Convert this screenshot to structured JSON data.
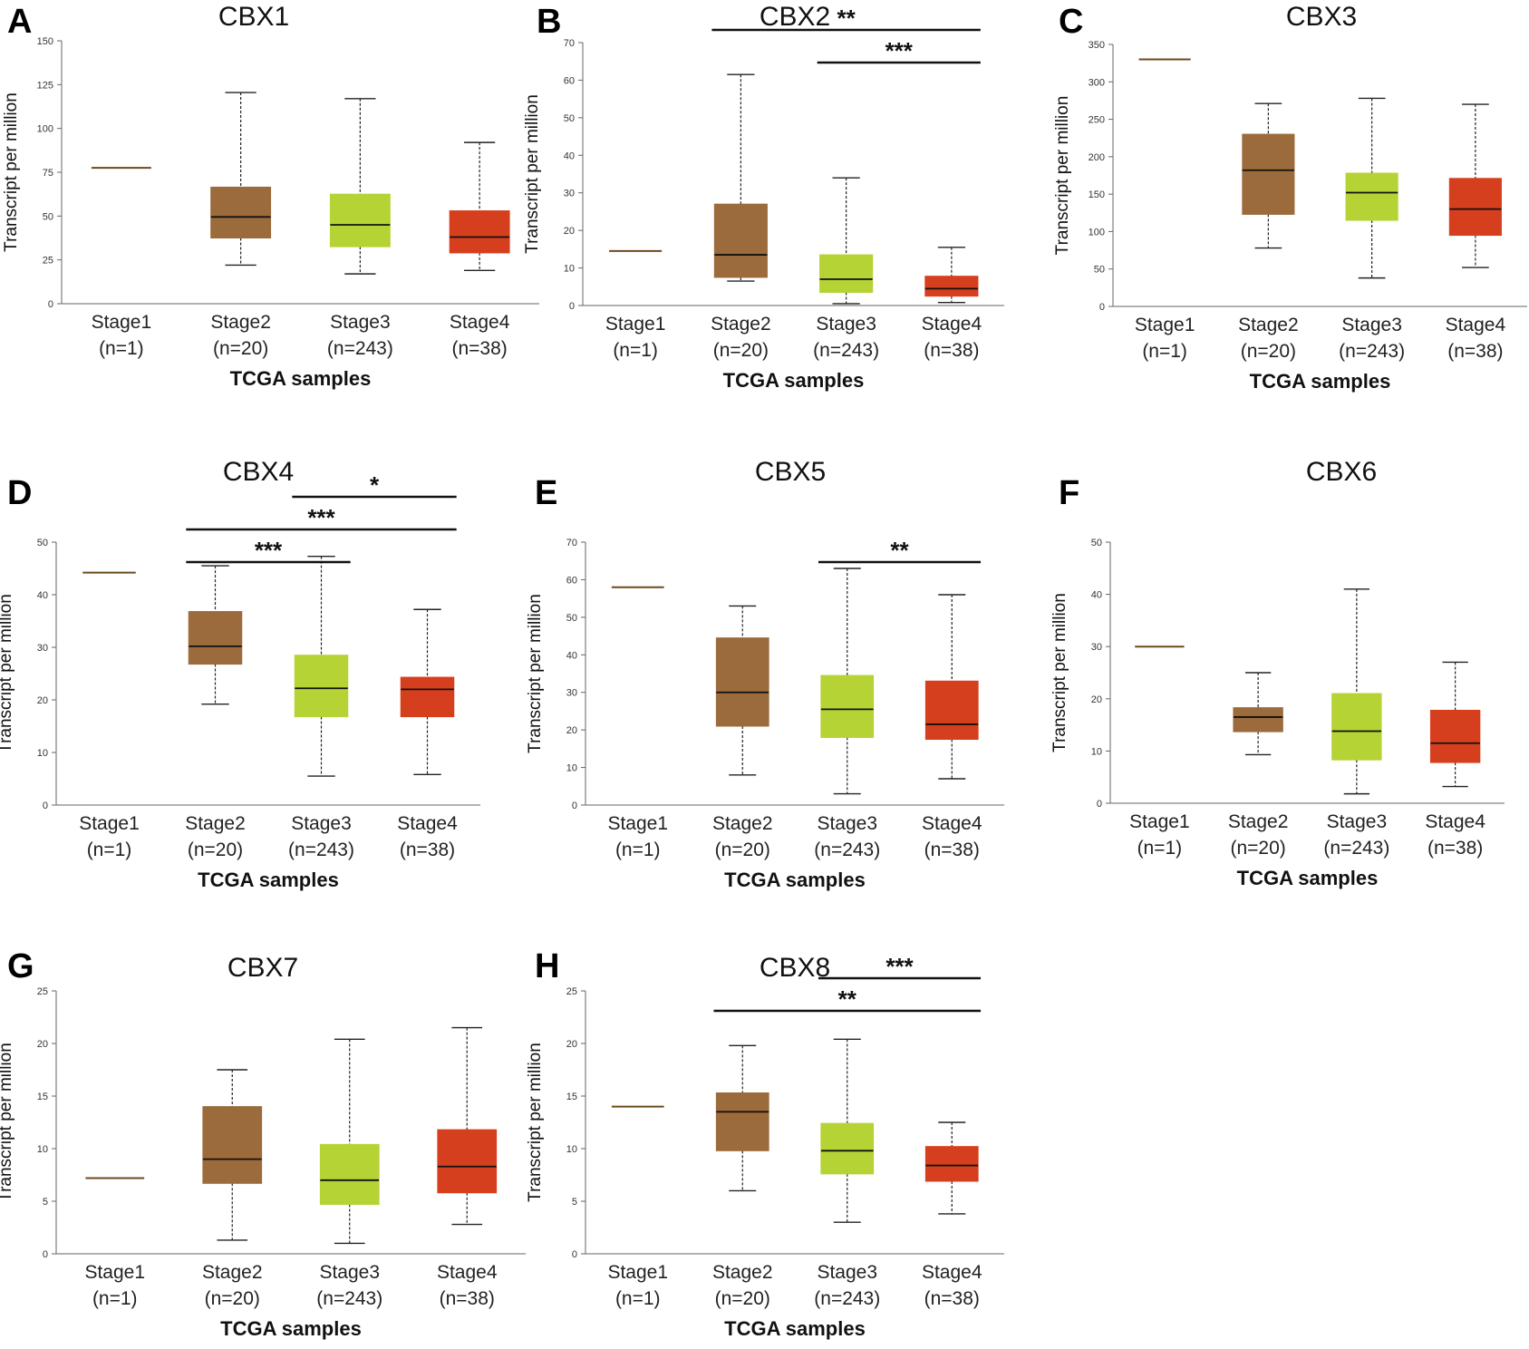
{
  "colors": {
    "Stage1": "#6b4a1e",
    "Stage2": "#9c6b3b",
    "Stage3": "#b5d334",
    "Stage4": "#d63f1d",
    "axis": "#666666",
    "median": "#111111"
  },
  "chart_data": [
    {
      "type": "boxplot",
      "panel": "A",
      "title": "CBX1",
      "xlabel": "TCGA samples",
      "ylabel": "Transcript per million",
      "ylim": [
        0,
        150
      ],
      "yticks": [
        0,
        25,
        50,
        75,
        100,
        125,
        150
      ],
      "categories": [
        {
          "label": "Stage1",
          "n": "(n=1)",
          "min": 77.5,
          "q1": 77.5,
          "median": 77.5,
          "q3": 77.5,
          "max": 77.5
        },
        {
          "label": "Stage2",
          "n": "(n=20)",
          "min": 22,
          "q1": 37.5,
          "median": 49.5,
          "q3": 66.5,
          "max": 120.5
        },
        {
          "label": "Stage3",
          "n": "(n=243)",
          "min": 17,
          "q1": 32.5,
          "median": 45,
          "q3": 62.5,
          "max": 117
        },
        {
          "label": "Stage4",
          "n": "(n=38)",
          "min": 19,
          "q1": 29,
          "median": 38,
          "q3": 53,
          "max": 92
        }
      ],
      "significance": []
    },
    {
      "type": "boxplot",
      "panel": "B",
      "title": "CBX2",
      "xlabel": "TCGA samples",
      "ylabel": "Transcript per million",
      "ylim": [
        0,
        70
      ],
      "yticks": [
        0,
        10,
        20,
        30,
        40,
        50,
        60,
        70
      ],
      "categories": [
        {
          "label": "Stage1",
          "n": "(n=1)",
          "min": 14.5,
          "q1": 14.5,
          "median": 14.5,
          "q3": 14.5,
          "max": 14.5
        },
        {
          "label": "Stage2",
          "n": "(n=20)",
          "min": 6.5,
          "q1": 7.5,
          "median": 13.5,
          "q3": 27,
          "max": 61.5
        },
        {
          "label": "Stage3",
          "n": "(n=243)",
          "min": 0.5,
          "q1": 3.5,
          "median": 7,
          "q3": 13.5,
          "max": 34
        },
        {
          "label": "Stage4",
          "n": "(n=38)",
          "min": 0.8,
          "q1": 2.5,
          "median": 4.5,
          "q3": 7.8,
          "max": 15.5
        }
      ],
      "significance": [
        {
          "from": "Stage2",
          "to": "Stage4",
          "label": "**"
        },
        {
          "from": "Stage3",
          "to": "Stage4",
          "label": "***"
        }
      ]
    },
    {
      "type": "boxplot",
      "panel": "C",
      "title": "CBX3",
      "xlabel": "TCGA samples",
      "ylabel": "Transcript per million",
      "ylim": [
        0,
        350
      ],
      "yticks": [
        0,
        50,
        100,
        150,
        200,
        250,
        300,
        350
      ],
      "categories": [
        {
          "label": "Stage1",
          "n": "(n=1)",
          "min": 330,
          "q1": 330,
          "median": 330,
          "q3": 330,
          "max": 330
        },
        {
          "label": "Stage2",
          "n": "(n=20)",
          "min": 78,
          "q1": 123,
          "median": 182,
          "q3": 230,
          "max": 271
        },
        {
          "label": "Stage3",
          "n": "(n=243)",
          "min": 38,
          "q1": 115,
          "median": 152,
          "q3": 178,
          "max": 278
        },
        {
          "label": "Stage4",
          "n": "(n=38)",
          "min": 52,
          "q1": 95,
          "median": 130,
          "q3": 171,
          "max": 270
        }
      ],
      "significance": []
    },
    {
      "type": "boxplot",
      "panel": "D",
      "title": "CBX4",
      "xlabel": "TCGA samples",
      "ylabel": "Transcript per million",
      "ylim": [
        0,
        50
      ],
      "yticks": [
        0,
        10,
        20,
        30,
        40,
        50
      ],
      "categories": [
        {
          "label": "Stage1",
          "n": "(n=1)",
          "min": 44.2,
          "q1": 44.2,
          "median": 44.2,
          "q3": 44.2,
          "max": 44.2
        },
        {
          "label": "Stage2",
          "n": "(n=20)",
          "min": 19.2,
          "q1": 26.8,
          "median": 30.2,
          "q3": 36.8,
          "max": 45.5
        },
        {
          "label": "Stage3",
          "n": "(n=243)",
          "min": 5.5,
          "q1": 16.8,
          "median": 22.2,
          "q3": 28.5,
          "max": 47.3
        },
        {
          "label": "Stage4",
          "n": "(n=38)",
          "min": 5.8,
          "q1": 16.8,
          "median": 22,
          "q3": 24.3,
          "max": 37.2
        }
      ],
      "significance": [
        {
          "from": "Stage3",
          "to": "Stage4",
          "label": "*"
        },
        {
          "from": "Stage2",
          "to": "Stage4",
          "label": "***"
        },
        {
          "from": "Stage2",
          "to": "Stage3",
          "label": "***"
        }
      ]
    },
    {
      "type": "boxplot",
      "panel": "E",
      "title": "CBX5",
      "xlabel": "TCGA samples",
      "ylabel": "Transcript per million",
      "ylim": [
        0,
        70
      ],
      "yticks": [
        0,
        10,
        20,
        30,
        40,
        50,
        60,
        70
      ],
      "categories": [
        {
          "label": "Stage1",
          "n": "(n=1)",
          "min": 58,
          "q1": 58,
          "median": 58,
          "q3": 58,
          "max": 58
        },
        {
          "label": "Stage2",
          "n": "(n=20)",
          "min": 8,
          "q1": 21,
          "median": 30,
          "q3": 44.5,
          "max": 53
        },
        {
          "label": "Stage3",
          "n": "(n=243)",
          "min": 3,
          "q1": 18,
          "median": 25.5,
          "q3": 34.5,
          "max": 63
        },
        {
          "label": "Stage4",
          "n": "(n=38)",
          "min": 7,
          "q1": 17.5,
          "median": 21.5,
          "q3": 33,
          "max": 56
        }
      ],
      "significance": [
        {
          "from": "Stage3",
          "to": "Stage4",
          "label": "**"
        }
      ]
    },
    {
      "type": "boxplot",
      "panel": "F",
      "title": "CBX6",
      "xlabel": "TCGA samples",
      "ylabel": "Transcript per million",
      "ylim": [
        0,
        50
      ],
      "yticks": [
        0,
        10,
        20,
        30,
        40,
        50
      ],
      "categories": [
        {
          "label": "Stage1",
          "n": "(n=1)",
          "min": 30,
          "q1": 30,
          "median": 30,
          "q3": 30,
          "max": 30
        },
        {
          "label": "Stage2",
          "n": "(n=20)",
          "min": 9.3,
          "q1": 13.7,
          "median": 16.5,
          "q3": 18.3,
          "max": 25
        },
        {
          "label": "Stage3",
          "n": "(n=243)",
          "min": 1.8,
          "q1": 8.3,
          "median": 13.8,
          "q3": 21,
          "max": 41
        },
        {
          "label": "Stage4",
          "n": "(n=38)",
          "min": 3.2,
          "q1": 7.8,
          "median": 11.5,
          "q3": 17.8,
          "max": 27
        }
      ],
      "significance": []
    },
    {
      "type": "boxplot",
      "panel": "G",
      "title": "CBX7",
      "xlabel": "TCGA samples",
      "ylabel": "Transcript per million",
      "ylim": [
        0,
        25
      ],
      "yticks": [
        0,
        5,
        10,
        15,
        20,
        25
      ],
      "categories": [
        {
          "label": "Stage1",
          "n": "(n=1)",
          "min": 7.2,
          "q1": 7.2,
          "median": 7.2,
          "q3": 7.2,
          "max": 7.2
        },
        {
          "label": "Stage2",
          "n": "(n=20)",
          "min": 1.3,
          "q1": 6.7,
          "median": 9,
          "q3": 14,
          "max": 17.5
        },
        {
          "label": "Stage3",
          "n": "(n=243)",
          "min": 1,
          "q1": 4.7,
          "median": 7,
          "q3": 10.4,
          "max": 20.4
        },
        {
          "label": "Stage4",
          "n": "(n=38)",
          "min": 2.8,
          "q1": 5.8,
          "median": 8.3,
          "q3": 11.8,
          "max": 21.5
        }
      ],
      "significance": []
    },
    {
      "type": "boxplot",
      "panel": "H",
      "title": "CBX8",
      "xlabel": "TCGA samples",
      "ylabel": "Transcript per million",
      "ylim": [
        0,
        25
      ],
      "yticks": [
        0,
        5,
        10,
        15,
        20,
        25
      ],
      "categories": [
        {
          "label": "Stage1",
          "n": "(n=1)",
          "min": 14,
          "q1": 14,
          "median": 14,
          "q3": 14,
          "max": 14
        },
        {
          "label": "Stage2",
          "n": "(n=20)",
          "min": 6,
          "q1": 9.8,
          "median": 13.5,
          "q3": 15.3,
          "max": 19.8
        },
        {
          "label": "Stage3",
          "n": "(n=243)",
          "min": 3,
          "q1": 7.6,
          "median": 9.8,
          "q3": 12.4,
          "max": 20.4
        },
        {
          "label": "Stage4",
          "n": "(n=38)",
          "min": 3.8,
          "q1": 6.9,
          "median": 8.4,
          "q3": 10.2,
          "max": 12.5
        }
      ],
      "significance": [
        {
          "from": "Stage3",
          "to": "Stage4",
          "label": "***"
        },
        {
          "from": "Stage2",
          "to": "Stage4",
          "label": "**"
        }
      ]
    }
  ]
}
